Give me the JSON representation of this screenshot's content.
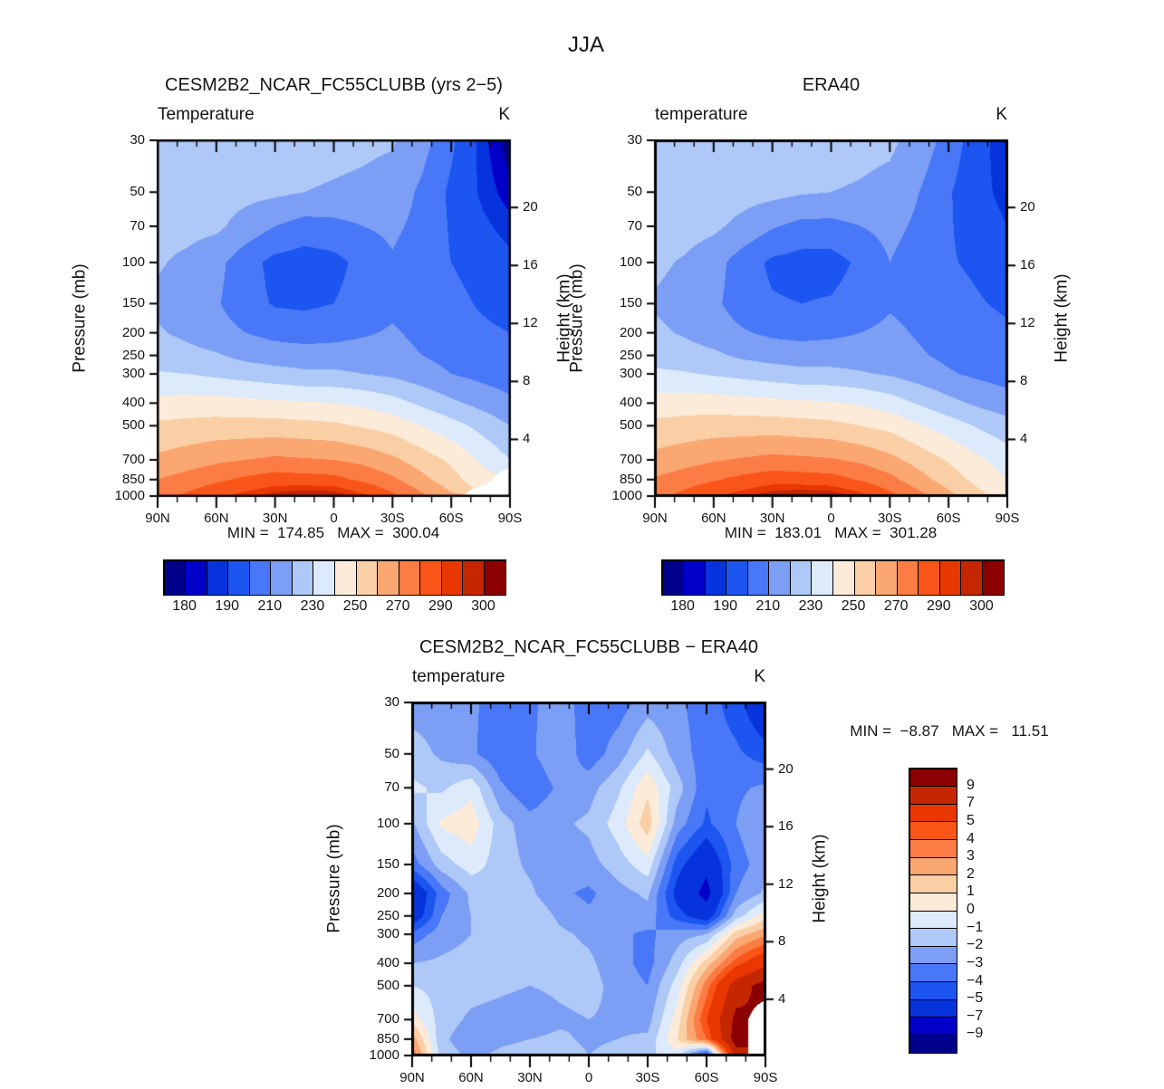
{
  "title": "JJA",
  "palette": {
    "colors": [
      "#00008B",
      "#0000C8",
      "#0733DD",
      "#1C55F0",
      "#4878F8",
      "#7C9FF5",
      "#AEC8F8",
      "#DCEAFB",
      "#FDEBD9",
      "#FBCFA6",
      "#FAA772",
      "#FB7D45",
      "#FA5518",
      "#E83700",
      "#C42700",
      "#8B0000"
    ],
    "missing": "#FFFFFF",
    "axis_color": "#000000"
  },
  "chart_data": [
    {
      "id": "cesm",
      "type": "heatmap",
      "title": "CESM2B2_NCAR_FC55CLUBB (yrs 2−5)",
      "subtitle_left": "Temperature",
      "subtitle_right": "K",
      "stats_line": "MIN =  174.85   MAX =  300.04",
      "ylabel": "Pressure (mb)",
      "y2label": "Height (km)",
      "x_ticks": [
        "90N",
        "60N",
        "30N",
        "0",
        "30S",
        "60S",
        "90S"
      ],
      "y_ticks": [
        "30",
        "50",
        "70",
        "100",
        "150",
        "200",
        "250",
        "300",
        "400",
        "500",
        "700",
        "850",
        "1000"
      ],
      "y2_ticks": [
        "20",
        "16",
        "12",
        "8",
        "4"
      ],
      "heights_km": [
        20,
        16,
        12,
        8,
        4
      ],
      "lat_points": [
        90,
        75,
        60,
        45,
        30,
        15,
        0,
        -15,
        -30,
        -45,
        -60,
        -75,
        -90
      ],
      "pressure_levels": [
        30,
        50,
        70,
        100,
        150,
        200,
        250,
        300,
        400,
        500,
        700,
        850,
        1000
      ],
      "levels": [
        180,
        185,
        190,
        200,
        210,
        220,
        230,
        240,
        250,
        260,
        270,
        280,
        290,
        295,
        300
      ],
      "colorbar_labels": [
        "180",
        "190",
        "210",
        "230",
        "250",
        "270",
        "290",
        "300"
      ],
      "colorbar_label_boundaries": [
        1,
        3,
        5,
        7,
        9,
        11,
        13,
        15
      ],
      "values": [
        [
          226,
          226,
          225,
          224,
          224,
          224,
          223,
          222,
          221,
          214,
          202,
          188,
          176
        ],
        [
          225,
          225,
          224,
          223,
          222,
          220,
          219,
          218,
          216,
          208,
          198,
          189,
          182
        ],
        [
          223,
          223,
          222,
          216,
          210,
          206,
          207,
          210,
          212,
          207,
          199,
          192,
          187
        ],
        [
          221,
          218,
          213,
          204,
          197,
          195,
          197,
          203,
          209,
          204,
          200,
          196,
          192
        ],
        [
          218,
          215,
          211,
          204,
          199,
          198,
          200,
          204,
          208,
          206,
          203,
          199,
          196
        ],
        [
          221,
          218,
          214,
          210,
          207,
          206,
          207,
          209,
          211,
          208,
          205,
          202,
          200
        ],
        [
          225,
          223,
          221,
          217,
          215,
          214,
          214,
          214,
          213,
          210,
          207,
          205,
          203
        ],
        [
          231,
          230,
          228,
          226,
          224,
          222,
          222,
          220,
          218,
          214,
          210,
          207,
          205
        ],
        [
          243,
          244,
          244,
          243,
          242,
          241,
          240,
          238,
          234,
          228,
          222,
          217,
          212
        ],
        [
          252,
          253,
          254,
          254,
          254,
          253,
          252,
          249,
          246,
          240,
          234,
          227,
          220
        ],
        [
          262,
          265,
          268,
          270,
          272,
          271,
          270,
          267,
          262,
          255,
          248,
          239,
          230
        ],
        [
          270,
          274,
          278,
          282,
          285,
          284,
          283,
          278,
          272,
          263,
          254,
          244,
          null
        ],
        [
          276,
          282,
          288,
          293,
          298,
          301,
          300,
          292,
          282,
          272,
          262,
          null,
          null
        ]
      ]
    },
    {
      "id": "era40",
      "type": "heatmap",
      "title": "ERA40",
      "subtitle_left": "temperature",
      "subtitle_right": "K",
      "stats_line": "MIN =  183.01   MAX =  301.28",
      "ylabel": "Pressure (mb)",
      "y2label": "Height (km)",
      "x_ticks": [
        "90N",
        "60N",
        "30N",
        "0",
        "30S",
        "60S",
        "90S"
      ],
      "y_ticks": [
        "30",
        "50",
        "70",
        "100",
        "150",
        "200",
        "250",
        "300",
        "400",
        "500",
        "700",
        "850",
        "1000"
      ],
      "y2_ticks": [
        "20",
        "16",
        "12",
        "8",
        "4"
      ],
      "heights_km": [
        20,
        16,
        12,
        8,
        4
      ],
      "lat_points": [
        90,
        75,
        60,
        45,
        30,
        15,
        0,
        -15,
        -30,
        -45,
        -60,
        -75,
        -90
      ],
      "pressure_levels": [
        30,
        50,
        70,
        100,
        150,
        200,
        250,
        300,
        400,
        500,
        700,
        850,
        1000
      ],
      "levels": [
        180,
        185,
        190,
        200,
        210,
        220,
        230,
        240,
        250,
        260,
        270,
        280,
        290,
        295,
        300
      ],
      "colorbar_labels": [
        "180",
        "190",
        "210",
        "230",
        "250",
        "270",
        "290",
        "300"
      ],
      "colorbar_label_boundaries": [
        1,
        3,
        5,
        7,
        9,
        11,
        13,
        15
      ],
      "values": [
        [
          227,
          227,
          226,
          225,
          225,
          225,
          224,
          223,
          222,
          216,
          206,
          194,
          184
        ],
        [
          226,
          226,
          225,
          224,
          223,
          221,
          220,
          219,
          217,
          210,
          201,
          193,
          187
        ],
        [
          224,
          224,
          222,
          217,
          211,
          207,
          207,
          210,
          213,
          208,
          201,
          195,
          190
        ],
        [
          222,
          219,
          214,
          205,
          198,
          196,
          196,
          202,
          210,
          205,
          201,
          198,
          194
        ],
        [
          219,
          216,
          212,
          205,
          201,
          200,
          201,
          205,
          209,
          207,
          204,
          201,
          198
        ],
        [
          222,
          219,
          215,
          211,
          208,
          207,
          208,
          210,
          212,
          209,
          206,
          204,
          202
        ],
        [
          226,
          224,
          222,
          218,
          216,
          215,
          215,
          215,
          214,
          211,
          208,
          206,
          204
        ],
        [
          232,
          231,
          229,
          227,
          225,
          223,
          223,
          221,
          219,
          215,
          211,
          208,
          206
        ],
        [
          244,
          245,
          245,
          244,
          243,
          242,
          241,
          239,
          235,
          229,
          223,
          218,
          214
        ],
        [
          253,
          254,
          255,
          255,
          255,
          254,
          253,
          250,
          247,
          241,
          235,
          229,
          224
        ],
        [
          263,
          266,
          269,
          271,
          273,
          272,
          271,
          268,
          263,
          256,
          249,
          242,
          235
        ],
        [
          271,
          275,
          279,
          283,
          286,
          285,
          284,
          279,
          273,
          264,
          255,
          247,
          240
        ],
        [
          277,
          283,
          289,
          294,
          299,
          301,
          300,
          293,
          283,
          273,
          263,
          253,
          245
        ]
      ]
    },
    {
      "id": "diff",
      "type": "heatmap",
      "title": "CESM2B2_NCAR_FC55CLUBB − ERA40",
      "subtitle_left": "temperature",
      "subtitle_right": "K",
      "stats_line": "MIN =  −8.87   MAX =   11.51",
      "ylabel": "Pressure (mb)",
      "y2label": "Height (km)",
      "x_ticks": [
        "90N",
        "60N",
        "30N",
        "0",
        "30S",
        "60S",
        "90S"
      ],
      "y_ticks": [
        "30",
        "50",
        "70",
        "100",
        "150",
        "200",
        "250",
        "300",
        "400",
        "500",
        "700",
        "850",
        "1000"
      ],
      "y2_ticks": [
        "20",
        "16",
        "12",
        "8",
        "4"
      ],
      "heights_km": [
        20,
        16,
        12,
        8,
        4
      ],
      "lat_points": [
        90,
        75,
        60,
        45,
        30,
        15,
        0,
        -15,
        -30,
        -45,
        -60,
        -75,
        -90
      ],
      "pressure_levels": [
        30,
        50,
        70,
        100,
        150,
        200,
        250,
        300,
        400,
        500,
        700,
        850,
        1000
      ],
      "levels": [
        -9,
        -7,
        -5,
        -4,
        -3,
        -2,
        -1,
        0,
        1,
        2,
        3,
        4,
        5,
        7,
        9
      ],
      "colorbar_labels": [
        "9",
        "7",
        "5",
        "4",
        "3",
        "2",
        "1",
        "0",
        "−1",
        "−2",
        "−3",
        "−4",
        "−5",
        "−7",
        "−9"
      ],
      "colorbar_label_boundaries": [
        1,
        2,
        3,
        4,
        5,
        6,
        7,
        8,
        9,
        10,
        11,
        12,
        13,
        14,
        15
      ],
      "values": [
        [
          -2.5,
          -2.5,
          -2.8,
          -3.5,
          -3.2,
          -2.5,
          -3.5,
          -3.5,
          -2.5,
          -2.8,
          -3.5,
          -4.5,
          -6.5
        ],
        [
          -1.5,
          -2.2,
          -2.8,
          -3.8,
          -3.2,
          -2.2,
          -3.6,
          -2.5,
          -0.8,
          -2.5,
          -3.5,
          -3.8,
          -4.5
        ],
        [
          -0.8,
          -1.2,
          -0.3,
          -2.8,
          -3.8,
          -2.8,
          -2.4,
          -1.2,
          0.8,
          -1.5,
          -3.8,
          -3.2,
          -2.8
        ],
        [
          -2.2,
          0.2,
          0.6,
          -1.5,
          -2.6,
          -2.2,
          -1.8,
          -0.5,
          1.6,
          -2.5,
          -4.2,
          -3.0,
          -2.0
        ],
        [
          -3.5,
          -1.5,
          -0.5,
          -1.5,
          -2.2,
          -2.6,
          -2.4,
          -1.5,
          -0.4,
          -4.5,
          -6.5,
          -3.5,
          -2.4
        ],
        [
          -6.6,
          -3.5,
          -1.8,
          -1.4,
          -1.8,
          -2.8,
          -3.2,
          -2.4,
          -1.8,
          -5.5,
          -7.6,
          -3.0,
          -1.8
        ],
        [
          -6.2,
          -3.0,
          -2.0,
          -1.2,
          -1.2,
          -2.2,
          -2.8,
          -2.6,
          -2.4,
          -4.5,
          -6.0,
          -1.5,
          0.6
        ],
        [
          -3.6,
          -2.5,
          -2.0,
          -1.5,
          -1.0,
          -1.8,
          -2.2,
          -2.8,
          -3.2,
          -2.5,
          -2.0,
          1.5,
          2.8
        ],
        [
          -2.0,
          -1.8,
          -1.6,
          -1.5,
          -1.4,
          -1.6,
          -1.8,
          -2.6,
          -3.4,
          -1.5,
          1.5,
          4.5,
          6.5
        ],
        [
          -1.0,
          -1.4,
          -1.6,
          -1.8,
          -2.0,
          -1.8,
          -1.6,
          -2.4,
          -3.0,
          -0.5,
          3.5,
          8.0,
          9.8
        ],
        [
          0.6,
          -1.5,
          -2.2,
          -2.4,
          -2.6,
          -2.2,
          -2.0,
          -2.2,
          -2.4,
          0.5,
          5.0,
          9.5,
          null
        ],
        [
          2.6,
          -1.8,
          -2.6,
          -2.2,
          -2.0,
          -1.8,
          -2.2,
          -2.0,
          -1.8,
          1.0,
          4.0,
          10.0,
          null
        ],
        [
          3.8,
          -1.5,
          -2.2,
          -1.8,
          -1.6,
          -1.4,
          -2.0,
          -1.6,
          -1.2,
          -0.5,
          -5.5,
          8.0,
          null
        ]
      ]
    }
  ]
}
